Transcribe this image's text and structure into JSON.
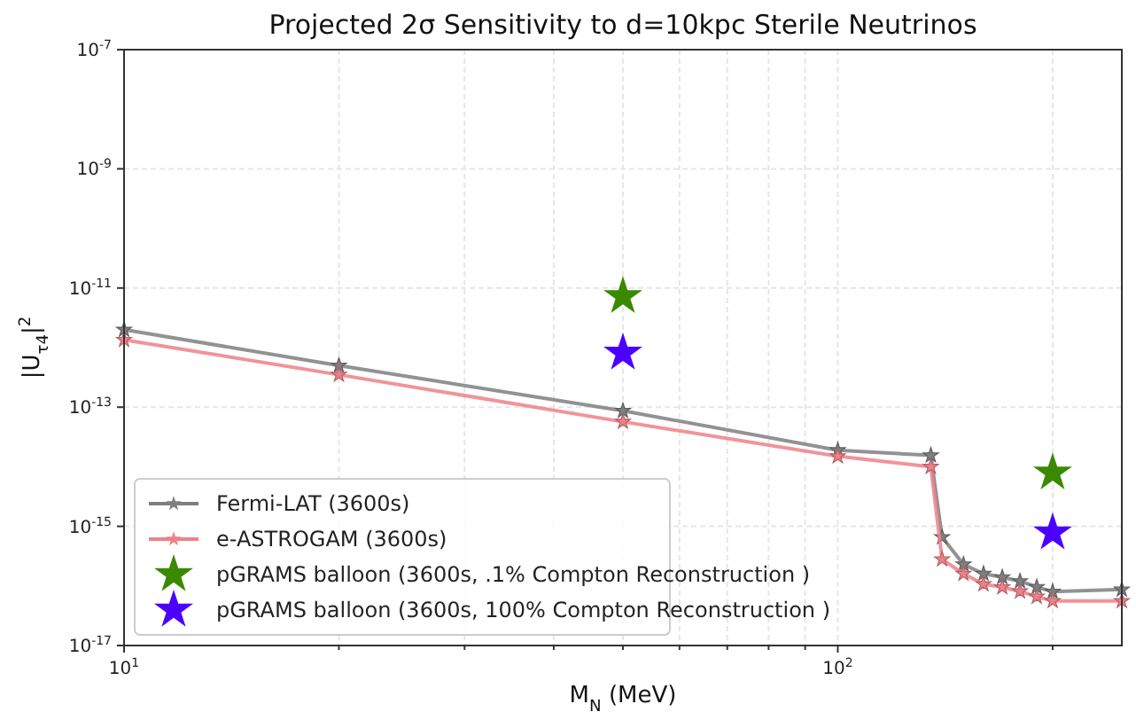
{
  "chart_data": {
    "type": "line",
    "title": "Projected 2σ Sensitivity to d=10kpc Sterile Neutrinos",
    "xlabel": "M$_{N}$ (MeV)",
    "ylabel": "|U$_{τ4}$|$^{2}$",
    "log": "xy",
    "grid": true,
    "legend": "bottom left",
    "marker": "star",
    "line_style": "solid",
    "xlim": [
      10,
      250
    ],
    "xticks": [
      {
        "value": 10,
        "label": "10$^{1}$"
      },
      {
        "value": 20,
        "label": null
      },
      {
        "value": 30,
        "label": null
      },
      {
        "value": 40,
        "label": null
      },
      {
        "value": 50,
        "label": null
      },
      {
        "value": 60,
        "label": null
      },
      {
        "value": 70,
        "label": null
      },
      {
        "value": 80,
        "label": null
      },
      {
        "value": 90,
        "label": null
      },
      {
        "value": 100,
        "label": "10$^{2}$"
      },
      {
        "value": 200,
        "label": null
      }
    ],
    "ylim": [
      1e-17,
      1e-07
    ],
    "yticks": [
      {
        "value": 1e-17,
        "label": "10$^{-17}$"
      },
      {
        "value": 1e-15,
        "label": "10$^{-15}$"
      },
      {
        "value": 1e-13,
        "label": "10$^{-13}$"
      },
      {
        "value": 1e-11,
        "label": "10$^{-11}$"
      },
      {
        "value": 1e-09,
        "label": "10$^{-9}$"
      },
      {
        "value": 1e-07,
        "label": "10$^{-7}$"
      }
    ],
    "series": [
      {
        "name": "Fermi-LAT (3600s)",
        "color": "#7f7f7f",
        "x": [
          10,
          20,
          50,
          100,
          135,
          140,
          150,
          160,
          170,
          180,
          190,
          200,
          250
        ],
        "values": [
          2e-12,
          5e-13,
          8.7e-14,
          1.9e-14,
          1.55e-14,
          6.6e-16,
          2.3e-16,
          1.6e-16,
          1.4e-16,
          1.2e-16,
          9.6e-17,
          8e-17,
          8.7e-17
        ]
      },
      {
        "name": "e-ASTROGAM (3600s)",
        "color": "#ee8088",
        "x": [
          10,
          20,
          50,
          100,
          135,
          140,
          150,
          160,
          170,
          180,
          190,
          200,
          250
        ],
        "values": [
          1.35e-12,
          3.5e-13,
          5.7e-14,
          1.5e-14,
          1e-14,
          2.8e-16,
          1.6e-16,
          1.07e-16,
          9.5e-17,
          8.1e-17,
          6.6e-17,
          5.6e-17,
          5.6e-17
        ]
      },
      {
        "name": "pGRAMS balloon (3600s, .1% Compton Reconstruction )",
        "type": "scatter",
        "color": "#3a8a00",
        "x": [
          50,
          200
        ],
        "values": [
          7.2e-12,
          7.9e-15
        ]
      },
      {
        "name": "pGRAMS balloon (3600s, 100% Compton Reconstruction )",
        "type": "scatter",
        "color": "#4b00ff",
        "x": [
          50,
          200
        ],
        "values": [
          8.1e-13,
          7.8e-16
        ]
      }
    ]
  }
}
